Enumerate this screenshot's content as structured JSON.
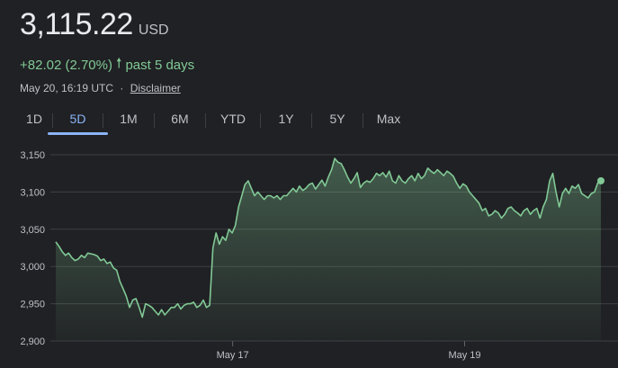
{
  "quote": {
    "price": "3,115.22",
    "currency": "USD",
    "change": "+82.02 (2.70%)",
    "period": "past 5 days",
    "timestamp": "May 20, 16:19 UTC",
    "separator": "·",
    "disclaimer": "Disclaimer"
  },
  "tabs": [
    {
      "label": "1D",
      "active": false
    },
    {
      "label": "5D",
      "active": true
    },
    {
      "label": "1M",
      "active": false
    },
    {
      "label": "6M",
      "active": false
    },
    {
      "label": "YTD",
      "active": false
    },
    {
      "label": "1Y",
      "active": false
    },
    {
      "label": "5Y",
      "active": false
    },
    {
      "label": "Max",
      "active": false
    }
  ],
  "colors": {
    "line": "#81c995",
    "accent": "#8ab4f8",
    "grid": "#3c4043"
  },
  "chart_data": {
    "type": "area",
    "ylim": [
      2900,
      3150
    ],
    "yticks": [
      2900,
      2950,
      3000,
      3050,
      3100,
      3150
    ],
    "ytick_labels": [
      "2,900",
      "2,950",
      "3,000",
      "3,050",
      "3,100",
      "3,150"
    ],
    "xtick_labels": [
      "May 17",
      "May 19"
    ],
    "xticks": [
      0.33,
      0.75
    ],
    "grid": "horizontal",
    "series": [
      {
        "values": [
          3033,
          3027,
          3020,
          3015,
          3018,
          3012,
          3008,
          3010,
          3015,
          3012,
          3018,
          3017,
          3016,
          3014,
          3008,
          3010,
          3004,
          3006,
          2998,
          2995,
          2980,
          2970,
          2960,
          2945,
          2955,
          2957,
          2945,
          2932,
          2950,
          2948,
          2945,
          2940,
          2935,
          2942,
          2935,
          2940,
          2945,
          2945,
          2950,
          2943,
          2948,
          2950,
          2950,
          2952,
          2945,
          2948,
          2955,
          2945,
          2948,
          3025,
          3045,
          3030,
          3040,
          3035,
          3050,
          3045,
          3055,
          3080,
          3095,
          3110,
          3115,
          3105,
          3095,
          3100,
          3095,
          3090,
          3095,
          3095,
          3092,
          3095,
          3090,
          3095,
          3095,
          3100,
          3105,
          3100,
          3108,
          3102,
          3105,
          3110,
          3112,
          3104,
          3110,
          3116,
          3108,
          3120,
          3130,
          3145,
          3140,
          3138,
          3130,
          3120,
          3112,
          3118,
          3126,
          3106,
          3112,
          3115,
          3113,
          3118,
          3125,
          3122,
          3126,
          3120,
          3128,
          3115,
          3112,
          3122,
          3115,
          3112,
          3118,
          3122,
          3115,
          3125,
          3118,
          3122,
          3132,
          3128,
          3125,
          3130,
          3126,
          3122,
          3128,
          3125,
          3121,
          3112,
          3105,
          3111,
          3108,
          3100,
          3095,
          3090,
          3085,
          3075,
          3078,
          3068,
          3070,
          3075,
          3072,
          3065,
          3070,
          3078,
          3080,
          3075,
          3072,
          3068,
          3075,
          3078,
          3070,
          3075,
          3078,
          3065,
          3080,
          3090,
          3115,
          3125,
          3100,
          3080,
          3098,
          3105,
          3098,
          3108,
          3105,
          3110,
          3098,
          3095,
          3092,
          3098,
          3100,
          3112,
          3115
        ]
      }
    ],
    "last_point": 3115
  }
}
